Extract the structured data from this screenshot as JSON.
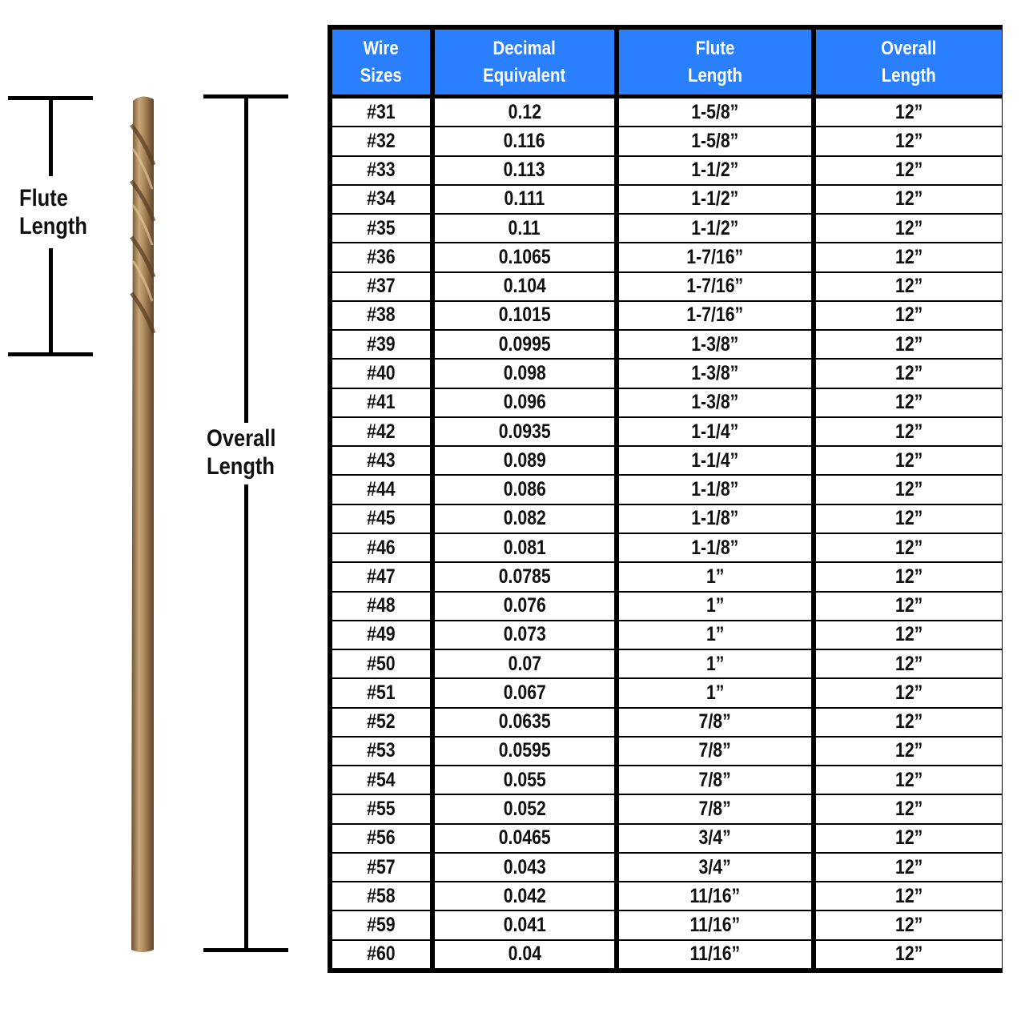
{
  "diagram": {
    "flute_label": "Flute\nLength",
    "overall_label": "Overall\nLength",
    "drill_color": "#a88458"
  },
  "table": {
    "header_color": "#2a7fff",
    "headers": [
      "Wire\nSizes",
      "Decimal\nEquivalent",
      "Flute\nLength",
      "Overall\nLength"
    ],
    "rows": [
      [
        "#31",
        "0.12",
        "1-5/8”",
        "12”"
      ],
      [
        "#32",
        "0.116",
        "1-5/8”",
        "12”"
      ],
      [
        "#33",
        "0.113",
        "1-1/2”",
        "12”"
      ],
      [
        "#34",
        "0.111",
        "1-1/2”",
        "12”"
      ],
      [
        "#35",
        "0.11",
        "1-1/2”",
        "12”"
      ],
      [
        "#36",
        "0.1065",
        "1-7/16”",
        "12”"
      ],
      [
        "#37",
        "0.104",
        "1-7/16”",
        "12”"
      ],
      [
        "#38",
        "0.1015",
        "1-7/16”",
        "12”"
      ],
      [
        "#39",
        "0.0995",
        "1-3/8”",
        "12”"
      ],
      [
        "#40",
        "0.098",
        "1-3/8”",
        "12”"
      ],
      [
        "#41",
        "0.096",
        "1-3/8”",
        "12”"
      ],
      [
        "#42",
        "0.0935",
        "1-1/4”",
        "12”"
      ],
      [
        "#43",
        "0.089",
        "1-1/4”",
        "12”"
      ],
      [
        "#44",
        "0.086",
        "1-1/8”",
        "12”"
      ],
      [
        "#45",
        "0.082",
        "1-1/8”",
        "12”"
      ],
      [
        "#46",
        "0.081",
        "1-1/8”",
        "12”"
      ],
      [
        "#47",
        "0.0785",
        "1”",
        "12”"
      ],
      [
        "#48",
        "0.076",
        "1”",
        "12”"
      ],
      [
        "#49",
        "0.073",
        "1”",
        "12”"
      ],
      [
        "#50",
        "0.07",
        "1”",
        "12”"
      ],
      [
        "#51",
        "0.067",
        "1”",
        "12”"
      ],
      [
        "#52",
        "0.0635",
        "7/8”",
        "12”"
      ],
      [
        "#53",
        "0.0595",
        "7/8”",
        "12”"
      ],
      [
        "#54",
        "0.055",
        "7/8”",
        "12”"
      ],
      [
        "#55",
        "0.052",
        "7/8”",
        "12”"
      ],
      [
        "#56",
        "0.0465",
        "3/4”",
        "12”"
      ],
      [
        "#57",
        "0.043",
        "3/4”",
        "12”"
      ],
      [
        "#58",
        "0.042",
        "11/16”",
        "12”"
      ],
      [
        "#59",
        "0.041",
        "11/16”",
        "12”"
      ],
      [
        "#60",
        "0.04",
        "11/16”",
        "12”"
      ]
    ]
  }
}
